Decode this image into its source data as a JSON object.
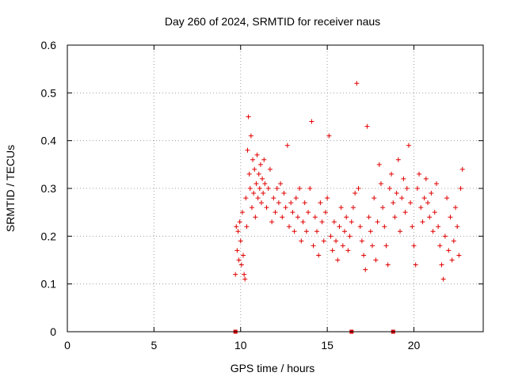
{
  "chart_data": {
    "type": "scatter",
    "title": "Day 260 of 2024, SRMTID for receiver naus",
    "xlabel": "GPS time / hours",
    "ylabel": "SRMTID / TECUs",
    "xlim": [
      0,
      24
    ],
    "ylim": [
      0,
      0.6
    ],
    "x_ticks": [
      0,
      5,
      10,
      15,
      20
    ],
    "y_ticks": [
      0,
      0.1,
      0.2,
      0.3,
      0.4,
      0.5,
      0.6
    ],
    "x_tick_labels": [
      "0",
      "5",
      "10",
      "15",
      "20"
    ],
    "y_tick_labels": [
      "0",
      "0.1",
      "0.2",
      "0.3",
      "0.4",
      "0.5",
      "0.6"
    ],
    "grid": true,
    "marker": "+",
    "color": "#e00000",
    "series": [
      {
        "x": [
          9.7,
          9.75,
          9.8,
          9.85,
          9.9,
          9.95,
          10.0,
          10.05,
          10.1,
          10.15,
          10.2,
          10.25,
          10.3,
          10.35,
          10.4,
          10.45,
          10.5,
          10.55,
          10.6,
          10.65,
          10.7,
          10.75,
          10.8,
          10.85,
          10.9,
          10.95,
          11.0,
          11.05,
          11.1,
          11.15,
          11.2,
          11.25,
          11.3,
          11.35,
          11.4,
          11.5,
          11.6,
          11.7,
          11.8,
          11.9,
          12.0,
          12.1,
          12.2,
          12.3,
          12.4,
          12.5,
          12.6,
          12.7,
          12.8,
          12.9,
          13.0,
          13.1,
          13.2,
          13.3,
          13.4,
          13.5,
          13.6,
          13.7,
          13.8,
          13.9,
          14.0,
          14.1,
          14.2,
          14.3,
          14.4,
          14.5,
          14.6,
          14.7,
          14.8,
          14.9,
          15.0,
          15.1,
          15.2,
          15.3,
          15.4,
          15.5,
          15.6,
          15.7,
          15.8,
          15.9,
          16.0,
          16.1,
          16.2,
          16.3,
          16.4,
          16.5,
          16.6,
          16.7,
          16.8,
          16.9,
          17.0,
          17.1,
          17.2,
          17.3,
          17.4,
          17.5,
          17.6,
          17.7,
          17.8,
          17.9,
          18.0,
          18.1,
          18.2,
          18.3,
          18.4,
          18.5,
          18.6,
          18.7,
          18.8,
          18.9,
          19.0,
          19.1,
          19.2,
          19.3,
          19.4,
          19.5,
          19.6,
          19.7,
          19.8,
          19.9,
          20.0,
          20.1,
          20.2,
          20.3,
          20.4,
          20.5,
          20.6,
          20.7,
          20.8,
          20.9,
          21.0,
          21.1,
          21.2,
          21.3,
          21.4,
          21.5,
          21.6,
          21.7,
          21.8,
          21.9,
          22.0,
          22.1,
          22.2,
          22.3,
          22.4,
          22.5,
          22.6,
          22.7,
          22.8
        ],
        "y": [
          0.12,
          0.22,
          0.17,
          0.21,
          0.15,
          0.23,
          0.19,
          0.14,
          0.25,
          0.16,
          0.12,
          0.11,
          0.28,
          0.22,
          0.38,
          0.45,
          0.33,
          0.3,
          0.41,
          0.26,
          0.36,
          0.29,
          0.34,
          0.24,
          0.31,
          0.37,
          0.28,
          0.33,
          0.3,
          0.35,
          0.27,
          0.32,
          0.29,
          0.36,
          0.31,
          0.26,
          0.3,
          0.34,
          0.23,
          0.28,
          0.25,
          0.3,
          0.27,
          0.31,
          0.24,
          0.29,
          0.26,
          0.39,
          0.22,
          0.27,
          0.25,
          0.21,
          0.28,
          0.24,
          0.3,
          0.19,
          0.23,
          0.27,
          0.21,
          0.25,
          0.3,
          0.44,
          0.18,
          0.24,
          0.21,
          0.16,
          0.27,
          0.23,
          0.19,
          0.25,
          0.28,
          0.41,
          0.2,
          0.17,
          0.23,
          0.19,
          0.15,
          0.22,
          0.26,
          0.18,
          0.21,
          0.24,
          0.17,
          0.2,
          0.23,
          0.26,
          0.29,
          0.52,
          0.3,
          0.22,
          0.19,
          0.16,
          0.13,
          0.43,
          0.24,
          0.21,
          0.18,
          0.28,
          0.15,
          0.23,
          0.35,
          0.31,
          0.26,
          0.22,
          0.18,
          0.14,
          0.3,
          0.33,
          0.27,
          0.24,
          0.29,
          0.36,
          0.21,
          0.28,
          0.32,
          0.25,
          0.3,
          0.39,
          0.27,
          0.22,
          0.18,
          0.14,
          0.3,
          0.33,
          0.26,
          0.23,
          0.28,
          0.32,
          0.27,
          0.24,
          0.29,
          0.21,
          0.25,
          0.31,
          0.22,
          0.18,
          0.14,
          0.11,
          0.2,
          0.28,
          0.17,
          0.24,
          0.15,
          0.19,
          0.26,
          0.22,
          0.16,
          0.3,
          0.34
        ]
      }
    ],
    "axis_markers_x": [
      9.7,
      16.4,
      18.8
    ]
  }
}
